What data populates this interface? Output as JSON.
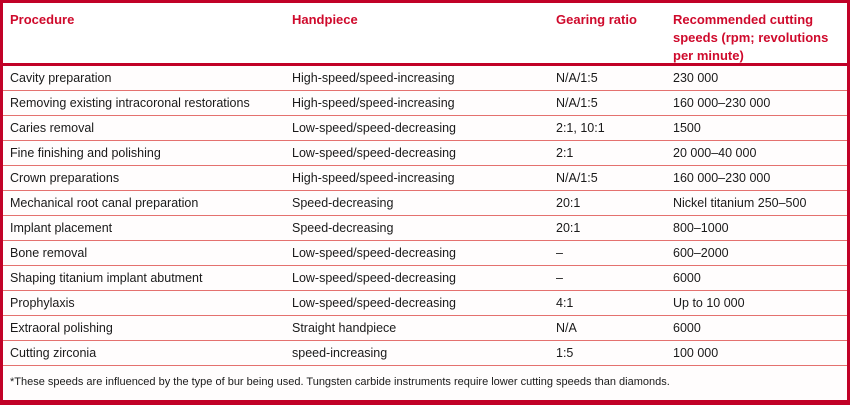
{
  "table": {
    "columns": [
      "Procedure",
      "Handpiece",
      "Gearing ratio",
      "Recommended cutting speeds (rpm; revolutions per minute)"
    ],
    "rows": [
      {
        "procedure": "Cavity preparation",
        "handpiece": "High-speed/speed-increasing",
        "gearing": "N/A/1:5",
        "speed": "230 000"
      },
      {
        "procedure": "Removing existing intracoronal restorations",
        "handpiece": "High-speed/speed-increasing",
        "gearing": "N/A/1:5",
        "speed": "160 000–230 000"
      },
      {
        "procedure": "Caries removal",
        "handpiece": "Low-speed/speed-decreasing",
        "gearing": "2:1, 10:1",
        "speed": "1500"
      },
      {
        "procedure": "Fine finishing and polishing",
        "handpiece": "Low-speed/speed-decreasing",
        "gearing": "2:1",
        "speed": "20 000–40 000"
      },
      {
        "procedure": "Crown preparations",
        "handpiece": "High-speed/speed-increasing",
        "gearing": "N/A/1:5",
        "speed": "160 000–230 000"
      },
      {
        "procedure": "Mechanical root canal preparation",
        "handpiece": "Speed-decreasing",
        "gearing": "20:1",
        "speed": "Nickel titanium 250–500"
      },
      {
        "procedure": "Implant placement",
        "handpiece": "Speed-decreasing",
        "gearing": "20:1",
        "speed": "800–1000"
      },
      {
        "procedure": "Bone removal",
        "handpiece": "Low-speed/speed-decreasing",
        "gearing": "–",
        "speed": "600–2000"
      },
      {
        "procedure": "Shaping titanium implant abutment",
        "handpiece": "Low-speed/speed-decreasing",
        "gearing": "–",
        "speed": "6000"
      },
      {
        "procedure": "Prophylaxis",
        "handpiece": "Low-speed/speed-decreasing",
        "gearing": "4:1",
        "speed": "Up to 10 000"
      },
      {
        "procedure": "Extraoral polishing",
        "handpiece": "Straight handpiece",
        "gearing": "N/A",
        "speed": "6000"
      },
      {
        "procedure": "Cutting zirconia",
        "handpiece": "speed-increasing",
        "gearing": "1:5",
        "speed": "100 000"
      }
    ],
    "footnote": "*These speeds are influenced by the type of bur being used. Tungsten carbide instruments require lower cutting speeds than diamonds."
  },
  "colors": {
    "border_red": "#c10127",
    "header_text": "#cf0a2c",
    "separator": "#e4716f",
    "body_text": "#1a1a1a"
  }
}
